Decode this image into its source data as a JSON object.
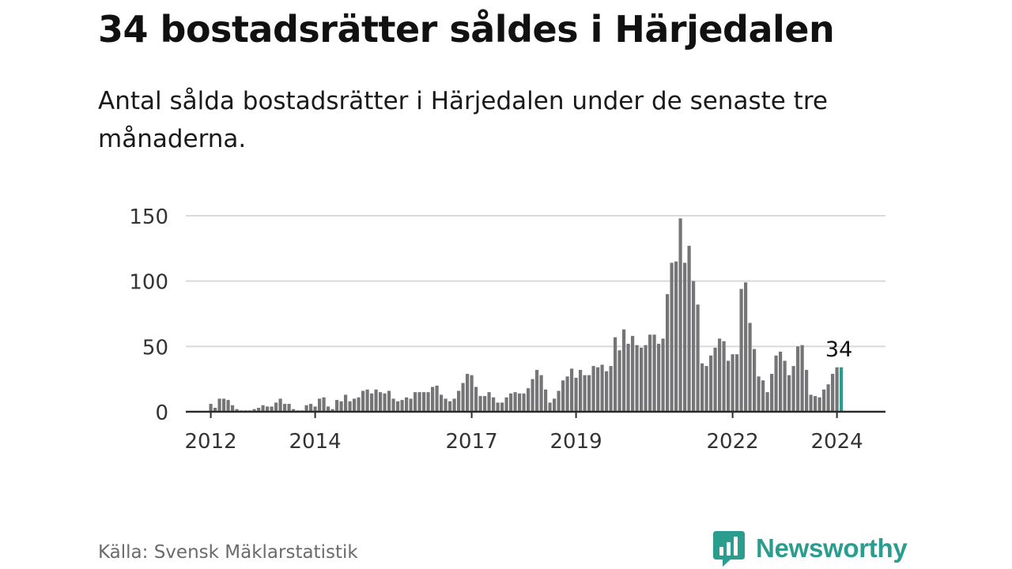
{
  "header": {
    "title": "34 bostadsrätter såldes i Härjedalen",
    "subtitle": "Antal sålda bostadsrätter i Härjedalen under de senaste tre månaderna."
  },
  "chart_data": {
    "type": "bar",
    "title": "34 bostadsrätter såldes i Härjedalen",
    "subtitle": "Antal sålda bostadsrätter i Härjedalen under de senaste tre månaderna.",
    "xlabel": "",
    "ylabel": "",
    "ylim": [
      0,
      150
    ],
    "yticks": [
      0,
      50,
      100,
      150
    ],
    "ytick_labels": [
      "0",
      "50",
      "100",
      "150"
    ],
    "grid": true,
    "start_period": "2011-08",
    "x_ticks": [
      {
        "label": "2012",
        "index": 5
      },
      {
        "label": "2014",
        "index": 29
      },
      {
        "label": "2017",
        "index": 65
      },
      {
        "label": "2019",
        "index": 89
      },
      {
        "label": "2022",
        "index": 125
      },
      {
        "label": "2024",
        "index": 149
      }
    ],
    "highlight_index": 150,
    "highlight_label": "34",
    "bar_color": "#757477",
    "highlight_color": "#2a9d8f",
    "values": [
      0,
      0,
      0,
      0,
      0,
      6,
      3,
      10,
      10,
      9,
      5,
      2,
      1,
      1,
      1,
      2,
      3,
      5,
      4,
      4,
      7,
      10,
      6,
      6,
      2,
      1,
      1,
      5,
      6,
      4,
      10,
      11,
      4,
      2,
      9,
      8,
      13,
      8,
      10,
      11,
      16,
      17,
      14,
      17,
      15,
      14,
      16,
      10,
      8,
      9,
      11,
      10,
      15,
      15,
      15,
      15,
      19,
      20,
      13,
      10,
      8,
      10,
      16,
      22,
      29,
      28,
      19,
      12,
      12,
      15,
      11,
      7,
      7,
      11,
      14,
      15,
      14,
      14,
      18,
      25,
      32,
      28,
      17,
      7,
      10,
      16,
      24,
      27,
      33,
      26,
      32,
      28,
      28,
      35,
      34,
      36,
      31,
      35,
      57,
      47,
      63,
      52,
      58,
      51,
      49,
      51,
      59,
      59,
      52,
      56,
      90,
      114,
      115,
      148,
      114,
      127,
      100,
      82,
      37,
      35,
      43,
      49,
      56,
      54,
      39,
      44,
      44,
      94,
      99,
      68,
      48,
      27,
      24,
      15,
      29,
      43,
      46,
      39,
      28,
      35,
      50,
      51,
      32,
      13,
      12,
      11,
      17,
      21,
      29,
      34,
      34
    ]
  },
  "footer": {
    "source": "Källa: Svensk Mäklarstatistik",
    "brand": "Newsworthy",
    "logo_icon": "newsworthy-logo-icon",
    "brand_color": "#2a9d8f"
  }
}
